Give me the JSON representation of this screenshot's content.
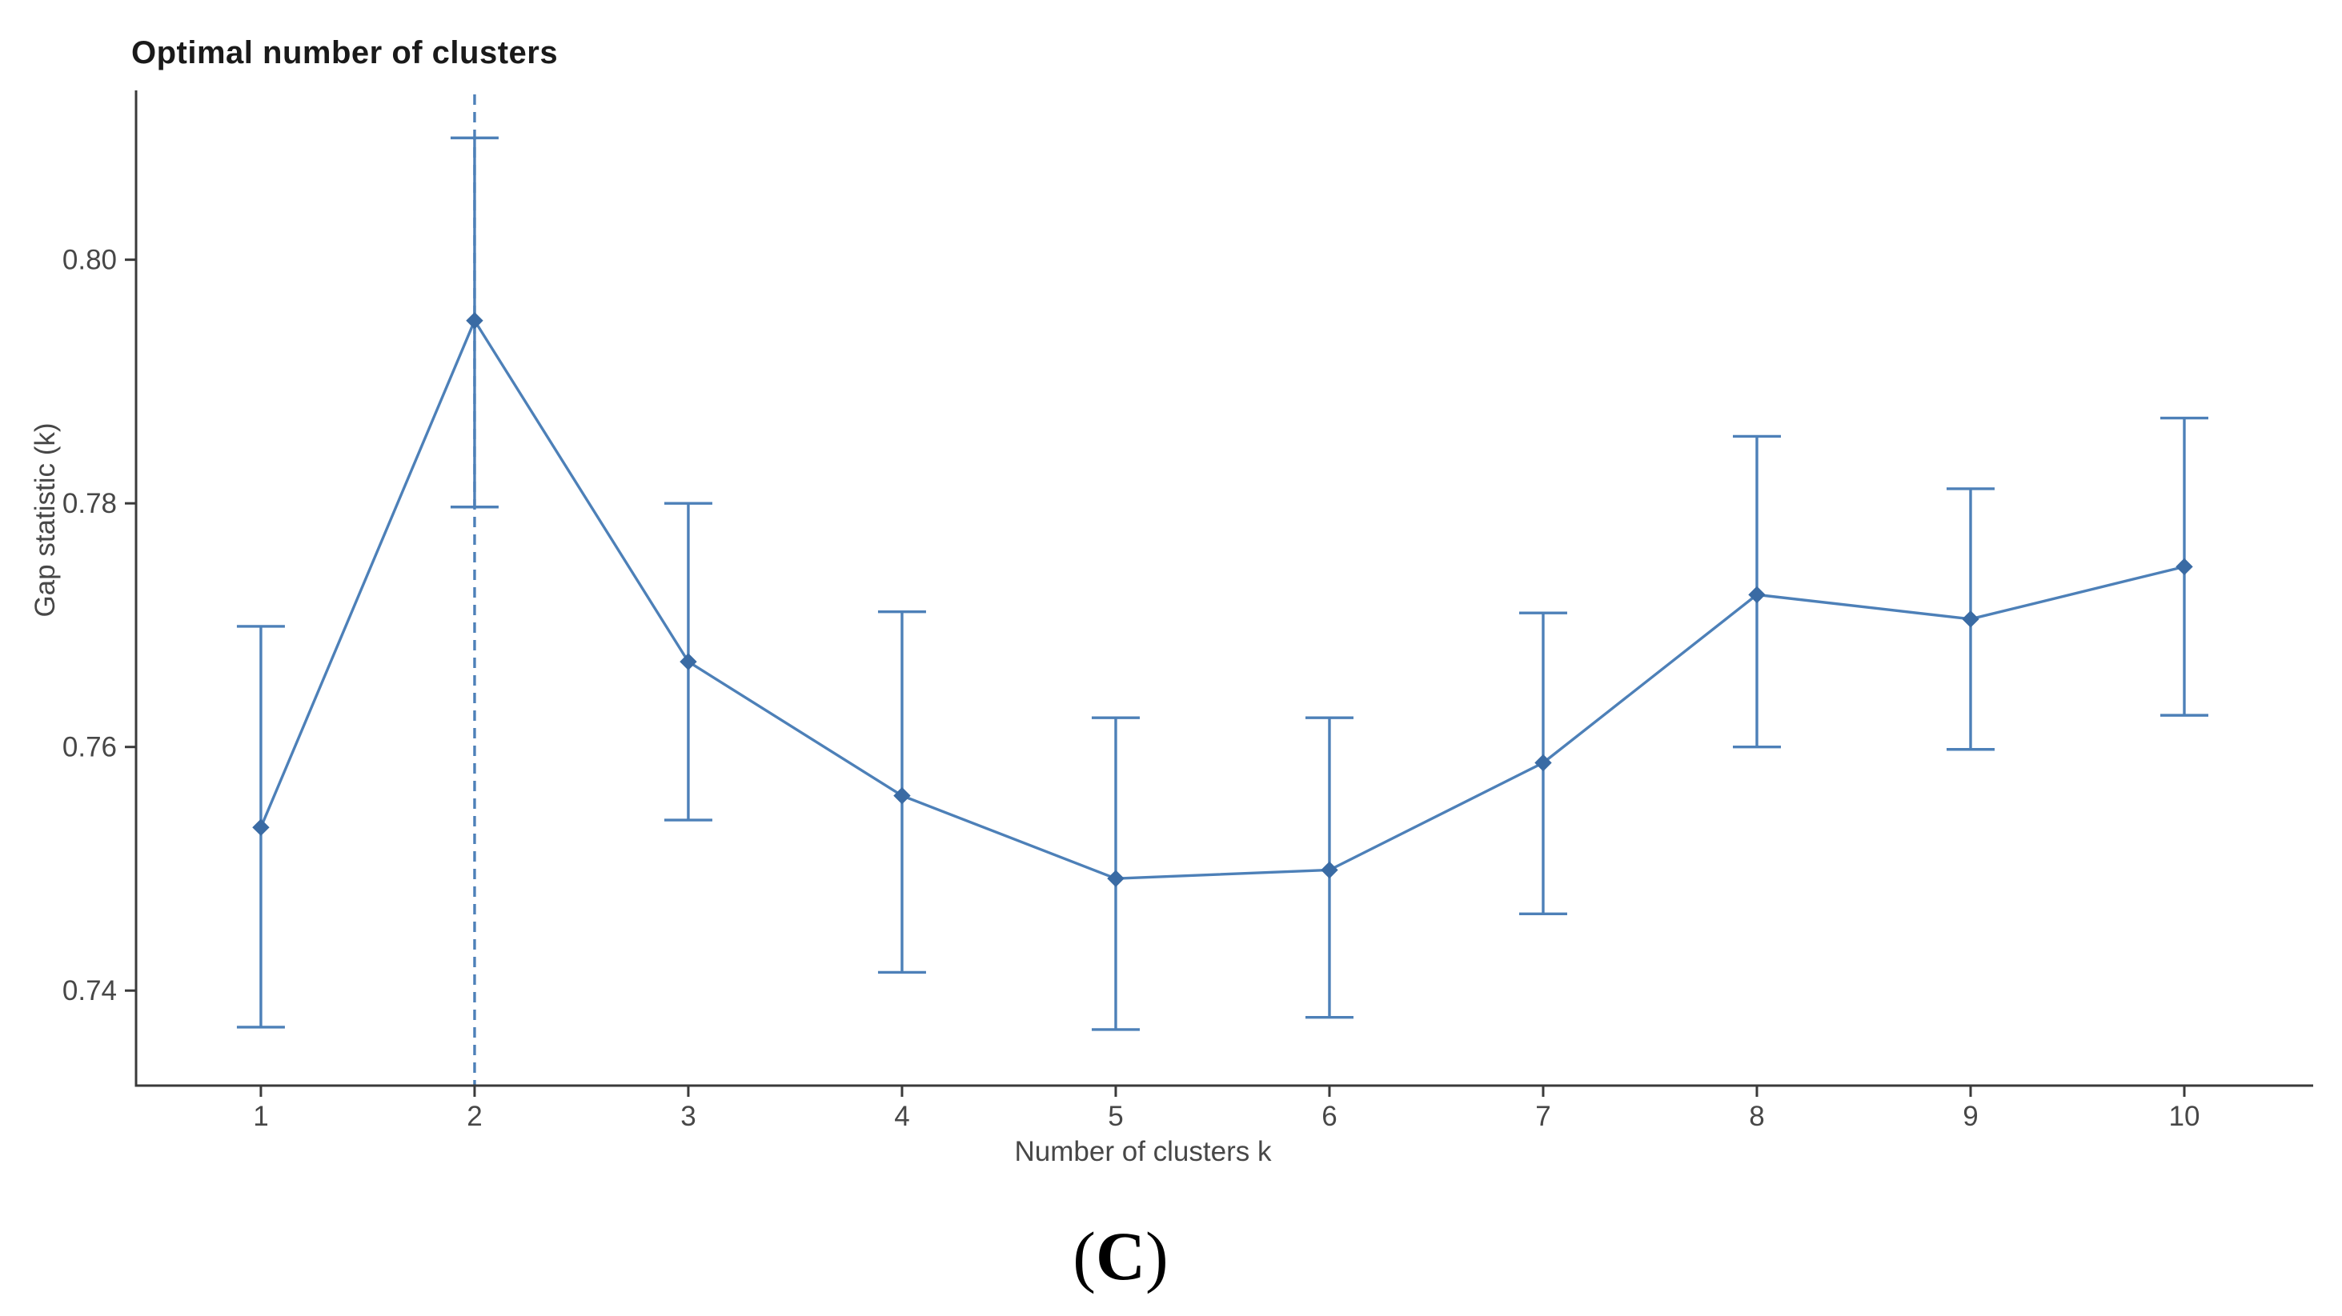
{
  "figure": {
    "caption": {
      "prefix": "(",
      "letter": "C",
      "suffix": ")"
    }
  },
  "chart_data": {
    "type": "line",
    "title": "Optimal number of clusters",
    "xlabel": "Number of clusters k",
    "ylabel": "Gap statistic (k)",
    "x": [
      1,
      2,
      3,
      4,
      5,
      6,
      7,
      8,
      9,
      10
    ],
    "x_tick_labels": [
      "1",
      "2",
      "3",
      "4",
      "5",
      "6",
      "7",
      "8",
      "9",
      "10"
    ],
    "y_ticks": [
      0.74,
      0.76,
      0.78,
      0.8
    ],
    "y_tick_labels": [
      "0.74",
      "0.76",
      "0.78",
      "0.80"
    ],
    "series": [
      {
        "name": "Gap statistic",
        "values": [
          0.7534,
          0.795,
          0.767,
          0.756,
          0.7492,
          0.7499,
          0.7587,
          0.7725,
          0.7705,
          0.7748
        ],
        "lower": [
          0.737,
          0.7797,
          0.754,
          0.7415,
          0.7368,
          0.7378,
          0.7463,
          0.76,
          0.7598,
          0.7626
        ],
        "upper": [
          0.7699,
          0.81,
          0.78,
          0.7711,
          0.7624,
          0.7624,
          0.771,
          0.7855,
          0.7812,
          0.787
        ]
      }
    ],
    "optimal_k": 2,
    "marker": "diamond",
    "error_bars": true,
    "grid": false,
    "legend": "none",
    "xlim": [
      0.416,
      10.603
    ],
    "ylim": [
      0.7322,
      0.8139
    ],
    "colors": {
      "line": "#4d80b8",
      "marker": "#3a6ba4",
      "dashed_line": "#4d80b8",
      "axis": "#3a3a3a",
      "tick_text": "#474747",
      "axis_title_text": "#474747",
      "title_text": "#1a1a1a",
      "caption_text": "#000000",
      "background": "#ffffff"
    }
  }
}
